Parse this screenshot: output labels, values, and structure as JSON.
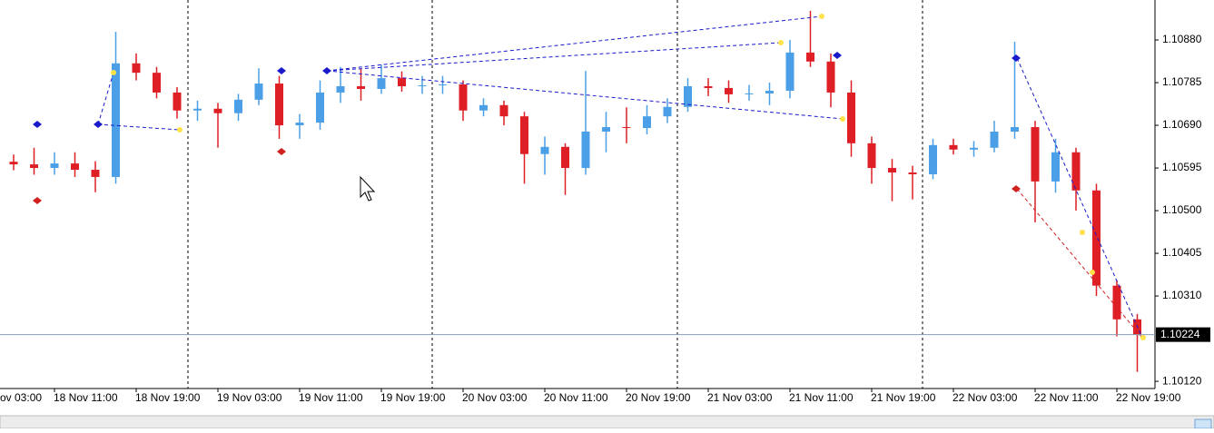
{
  "chart_data": {
    "type": "candlestick",
    "candles": [
      [
        1.10609,
        1.10625,
        1.1059,
        1.10603
      ],
      [
        1.10603,
        1.1064,
        1.1058,
        1.10595
      ],
      [
        1.10595,
        1.1063,
        1.1058,
        1.10605
      ],
      [
        1.10605,
        1.1063,
        1.10575,
        1.10591
      ],
      [
        1.10591,
        1.1061,
        1.10541,
        1.10575
      ],
      [
        1.10575,
        1.10898,
        1.1056,
        1.10828
      ],
      [
        1.10828,
        1.1085,
        1.1079,
        1.10807
      ],
      [
        1.10807,
        1.1082,
        1.1075,
        1.10763
      ],
      [
        1.10763,
        1.10775,
        1.10705,
        1.10723
      ],
      [
        1.10723,
        1.10745,
        1.107,
        1.10727
      ],
      [
        1.10727,
        1.1074,
        1.1064,
        1.10717
      ],
      [
        1.10717,
        1.1076,
        1.107,
        1.10747
      ],
      [
        1.10747,
        1.10817,
        1.10735,
        1.10783
      ],
      [
        1.10783,
        1.108,
        1.1066,
        1.1069
      ],
      [
        1.1069,
        1.10715,
        1.1066,
        1.10696
      ],
      [
        1.10696,
        1.1079,
        1.1068,
        1.10763
      ],
      [
        1.10763,
        1.1082,
        1.1074,
        1.10777
      ],
      [
        1.10777,
        1.10815,
        1.10745,
        1.10771
      ],
      [
        1.10771,
        1.10825,
        1.1076,
        1.10795
      ],
      [
        1.10795,
        1.1081,
        1.10765,
        1.10777
      ],
      [
        1.10777,
        1.108,
        1.1076,
        1.10779
      ],
      [
        1.10779,
        1.108,
        1.1076,
        1.10781
      ],
      [
        1.10781,
        1.1079,
        1.107,
        1.10723
      ],
      [
        1.10723,
        1.1075,
        1.1071,
        1.10735
      ],
      [
        1.10735,
        1.10745,
        1.1069,
        1.1071
      ],
      [
        1.1071,
        1.1072,
        1.1056,
        1.10626
      ],
      [
        1.10626,
        1.10665,
        1.1058,
        1.10642
      ],
      [
        1.10642,
        1.1065,
        1.10535,
        1.10595
      ],
      [
        1.10595,
        1.10811,
        1.1058,
        1.10676
      ],
      [
        1.10676,
        1.1072,
        1.1063,
        1.10686
      ],
      [
        1.10686,
        1.1073,
        1.1065,
        1.10684
      ],
      [
        1.10684,
        1.10735,
        1.1067,
        1.1071
      ],
      [
        1.1071,
        1.1075,
        1.10695,
        1.10731
      ],
      [
        1.10731,
        1.10795,
        1.1072,
        1.10777
      ],
      [
        1.10777,
        1.10795,
        1.10755,
        1.10773
      ],
      [
        1.10773,
        1.1079,
        1.1074,
        1.10759
      ],
      [
        1.10759,
        1.1078,
        1.10745,
        1.10761
      ],
      [
        1.10761,
        1.10785,
        1.10735,
        1.10767
      ],
      [
        1.10767,
        1.1088,
        1.1075,
        1.10852
      ],
      [
        1.10852,
        1.10945,
        1.1082,
        1.10832
      ],
      [
        1.10832,
        1.1085,
        1.1073,
        1.10763
      ],
      [
        1.10763,
        1.1079,
        1.1062,
        1.1065
      ],
      [
        1.1065,
        1.10665,
        1.1056,
        1.10595
      ],
      [
        1.10595,
        1.10615,
        1.10521,
        1.10585
      ],
      [
        1.10585,
        1.106,
        1.10525,
        1.10581
      ],
      [
        1.10581,
        1.1066,
        1.1057,
        1.10646
      ],
      [
        1.10646,
        1.1066,
        1.10625,
        1.10636
      ],
      [
        1.10636,
        1.10655,
        1.1062,
        1.1064
      ],
      [
        1.1064,
        1.107,
        1.1063,
        1.10676
      ],
      [
        1.10676,
        1.10876,
        1.1066,
        1.10686
      ],
      [
        1.10686,
        1.107,
        1.10474,
        1.10565
      ],
      [
        1.10565,
        1.1066,
        1.1054,
        1.1063
      ],
      [
        1.1063,
        1.1064,
        1.105,
        1.10545
      ],
      [
        1.10545,
        1.1056,
        1.1031,
        1.10333
      ],
      [
        1.10333,
        1.10345,
        1.1022,
        1.10258
      ],
      [
        1.10258,
        1.1027,
        1.10141,
        1.10224
      ]
    ],
    "categories": [
      null,
      null,
      "18 Nov 11:00",
      null,
      null,
      null,
      "18 Nov 19:00",
      null,
      null,
      null,
      "19 Nov 03:00",
      null,
      null,
      null,
      "19 Nov 11:00",
      null,
      null,
      null,
      "19 Nov 19:00",
      null,
      null,
      null,
      "20 Nov 03:00",
      null,
      null,
      null,
      "20 Nov 11:00",
      null,
      null,
      null,
      "20 Nov 19:00",
      null,
      null,
      null,
      "21 Nov 03:00",
      null,
      null,
      null,
      "21 Nov 11:00",
      null,
      null,
      null,
      "21 Nov 19:00",
      null,
      null,
      null,
      "22 Nov 03:00",
      null,
      null,
      null,
      "22 Nov 11:00",
      null,
      null,
      null,
      "22 Nov 19:00",
      null
    ],
    "x_label_clipped": "ov 03:00",
    "ylim": [
      1.10104,
      1.10969
    ],
    "yticks": [
      {
        "value": 1.1088,
        "label": "1.10880"
      },
      {
        "value": 1.10785,
        "label": "1.10785"
      },
      {
        "value": 1.1069,
        "label": "1.10690"
      },
      {
        "value": 1.10595,
        "label": "1.10595"
      },
      {
        "value": 1.105,
        "label": "1.10500"
      },
      {
        "value": 1.10405,
        "label": "1.10405"
      },
      {
        "value": 1.1031,
        "label": "1.10310"
      },
      {
        "value": 1.1012,
        "label": "1.10120"
      }
    ],
    "current_price": {
      "value": 1.10224,
      "label": "1.10224"
    },
    "bull_color": "#4a9fe6",
    "bear_color": "#de1f26"
  }
}
